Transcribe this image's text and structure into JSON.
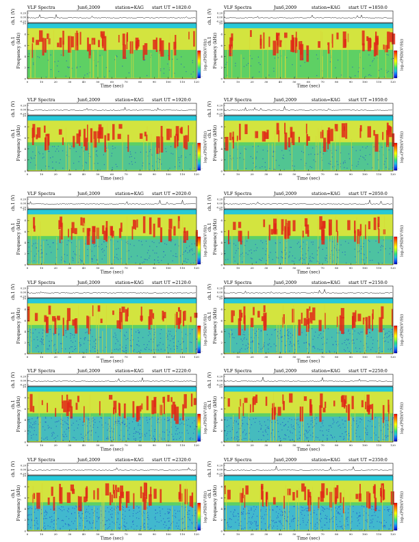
{
  "panel_common": {
    "title": "VLF Spectra",
    "date": "Jun6,2009",
    "station": "station=KAG",
    "ts_ylabel": "ch.1 (V)",
    "ts_ticks": [
      "0.20",
      "0.00",
      "-0.20"
    ],
    "spec_ylabel_top": "ch.1",
    "spec_ylabel": "Frequency (kHz)",
    "freq_ticks": [
      "10",
      "8",
      "6",
      "4",
      "2",
      "0"
    ],
    "colorbar_label": "log₁₀(PSD)(V²/Hz)",
    "colorbar_ticks": [
      "-",
      "-",
      "-"
    ],
    "x_ticks": [
      "0",
      "10",
      "20",
      "30",
      "40",
      "50",
      "60",
      "70",
      "80",
      "90",
      "100",
      "110",
      "120"
    ],
    "xlabel": "Time (sec)"
  },
  "colors": {
    "saturated_band": "#28c8d8",
    "background_green": "#5ed064",
    "intense_red": "#e02818",
    "yellow": "#e8e838",
    "low_blue": "#3cb4e0",
    "dark_blue": "#1c50c8",
    "colorbar": [
      "#ff0000",
      "#ff6000",
      "#ffb000",
      "#ffff00",
      "#a0ff30",
      "#30e080",
      "#20c0e0",
      "#1060ff",
      "#0000c0"
    ]
  },
  "chart_data": [
    {
      "type": "heatmap",
      "start": "start UT =1820:0",
      "xlabel": "Time (sec)",
      "ylabel": "Frequency (kHz)",
      "xlim": [
        0,
        120
      ],
      "ylim": [
        0,
        10
      ]
    },
    {
      "type": "heatmap",
      "start": "start UT =1850:0",
      "xlabel": "Time (sec)",
      "ylabel": "Frequency (kHz)",
      "xlim": [
        0,
        120
      ],
      "ylim": [
        0,
        10
      ]
    },
    {
      "type": "heatmap",
      "start": "start UT =1920:0",
      "xlabel": "Time (sec)",
      "ylabel": "Frequency (kHz)",
      "xlim": [
        0,
        120
      ],
      "ylim": [
        0,
        10
      ]
    },
    {
      "type": "heatmap",
      "start": "start UT =1950:0",
      "xlabel": "Time (sec)",
      "ylabel": "Frequency (kHz)",
      "xlim": [
        0,
        120
      ],
      "ylim": [
        0,
        10
      ]
    },
    {
      "type": "heatmap",
      "start": "start UT =2020:0",
      "xlabel": "Time (sec)",
      "ylabel": "Frequency (kHz)",
      "xlim": [
        0,
        120
      ],
      "ylim": [
        0,
        10
      ]
    },
    {
      "type": "heatmap",
      "start": "start UT =2050:0",
      "xlabel": "Time (sec)",
      "ylabel": "Frequency (kHz)",
      "xlim": [
        0,
        120
      ],
      "ylim": [
        0,
        10
      ]
    },
    {
      "type": "heatmap",
      "start": "start UT =2120:0",
      "xlabel": "Time (sec)",
      "ylabel": "Frequency (kHz)",
      "xlim": [
        0,
        120
      ],
      "ylim": [
        0,
        10
      ]
    },
    {
      "type": "heatmap",
      "start": "start UT =2150:0",
      "xlabel": "Time (sec)",
      "ylabel": "Frequency (kHz)",
      "xlim": [
        0,
        120
      ],
      "ylim": [
        0,
        10
      ]
    },
    {
      "type": "heatmap",
      "start": "start UT =2220:0",
      "xlabel": "Time (sec)",
      "ylabel": "Frequency (kHz)",
      "xlim": [
        0,
        120
      ],
      "ylim": [
        0,
        10
      ]
    },
    {
      "type": "heatmap",
      "start": "start UT =2250:0",
      "xlabel": "Time (sec)",
      "ylabel": "Frequency (kHz)",
      "xlim": [
        0,
        120
      ],
      "ylim": [
        0,
        10
      ]
    },
    {
      "type": "heatmap",
      "start": "start UT =2320:0",
      "xlabel": "Time (sec)",
      "ylabel": "Frequency (kHz)",
      "xlim": [
        0,
        120
      ],
      "ylim": [
        0,
        10
      ]
    },
    {
      "type": "heatmap",
      "start": "start UT =2350:0",
      "xlabel": "Time (sec)",
      "ylabel": "Frequency (kHz)",
      "xlim": [
        0,
        120
      ],
      "ylim": [
        0,
        10
      ]
    }
  ]
}
